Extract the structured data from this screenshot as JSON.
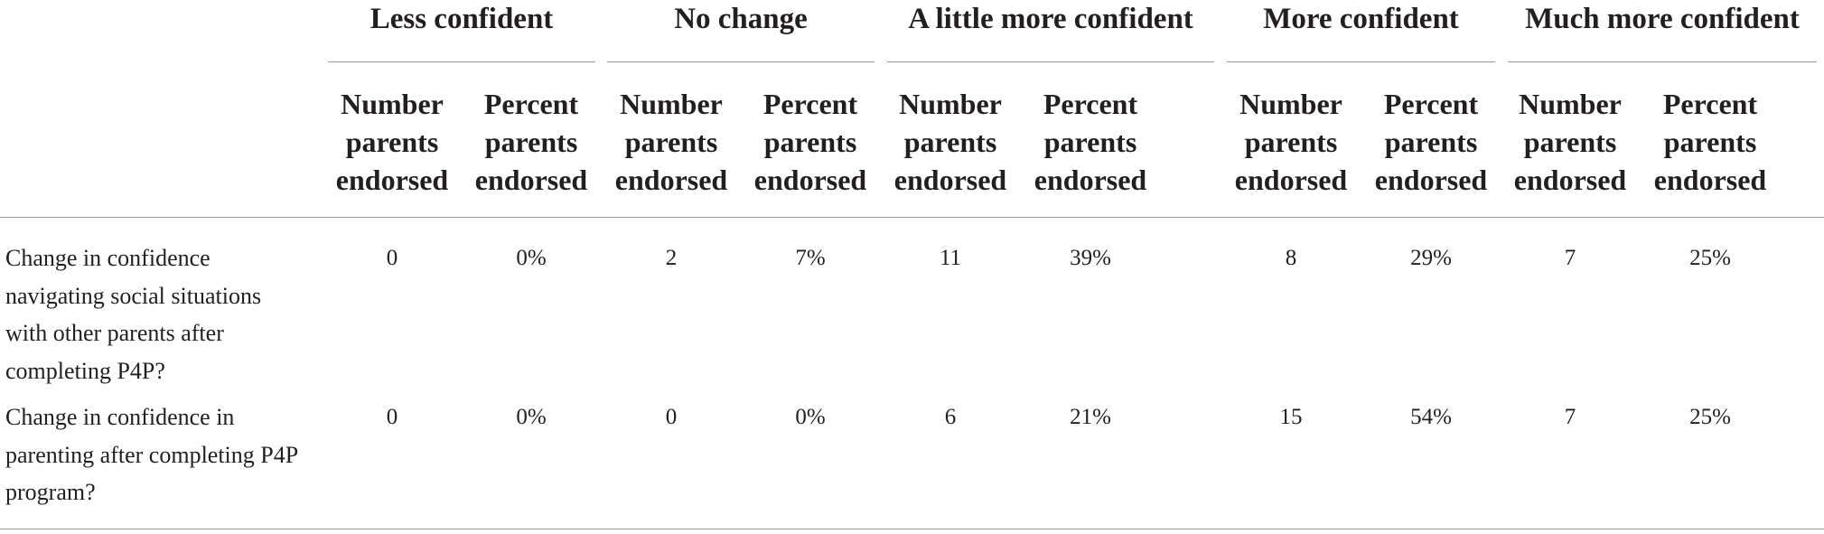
{
  "table": {
    "groups": [
      "Less confident",
      "No change",
      "A little more confident",
      "More confident",
      "Much more confident"
    ],
    "columns": [
      "Number parents endorsed",
      "Percent parents endorsed",
      "Number parents endorsed",
      "Percent parents endorsed",
      "Number parents endorsed",
      "Percent parents endorsed",
      "Number parents endorsed",
      "Percent parents endorsed",
      "Number parents endorsed",
      "Percent parents endorsed"
    ],
    "rows": [
      {
        "label": "Change in confidence navigating social situations with other parents after completing P4P?",
        "cells": [
          "0",
          "0%",
          "2",
          "7%",
          "11",
          "39%",
          "8",
          "29%",
          "7",
          "25%"
        ]
      },
      {
        "label": "Change in confidence in parenting after completing P4P program?",
        "cells": [
          "0",
          "0%",
          "0",
          "0%",
          "6",
          "21%",
          "15",
          "54%",
          "7",
          "25%"
        ]
      }
    ]
  }
}
